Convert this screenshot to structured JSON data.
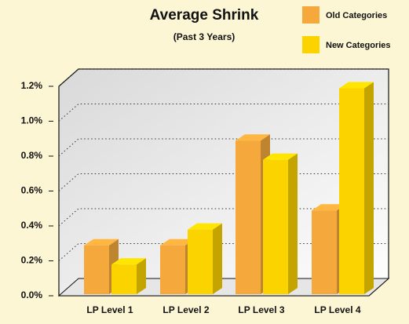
{
  "chart_data": {
    "type": "bar",
    "title": "Average Shrink",
    "subtitle": "(Past 3 Years)",
    "categories": [
      "LP Level 1",
      "LP Level 2",
      "LP Level 3",
      "LP Level 4"
    ],
    "series": [
      {
        "name": "Old Categories",
        "color": "#f5a93c",
        "values": [
          0.28,
          0.28,
          0.88,
          0.48
        ]
      },
      {
        "name": "New Categories",
        "color": "#fbd400",
        "values": [
          0.17,
          0.37,
          0.77,
          1.18
        ]
      }
    ],
    "ylim": [
      0,
      1.2
    ],
    "yticks": [
      {
        "value": 0,
        "label": "0.0%"
      },
      {
        "value": 0.2,
        "label": "0.2%"
      },
      {
        "value": 0.4,
        "label": "0.4%"
      },
      {
        "value": 0.6,
        "label": "0.6%"
      },
      {
        "value": 0.8,
        "label": "0.8%"
      },
      {
        "value": 1.0,
        "label": "1.0%"
      },
      {
        "value": 1.2,
        "label": "1.2%"
      }
    ],
    "grid": true,
    "legend": "top-right"
  }
}
